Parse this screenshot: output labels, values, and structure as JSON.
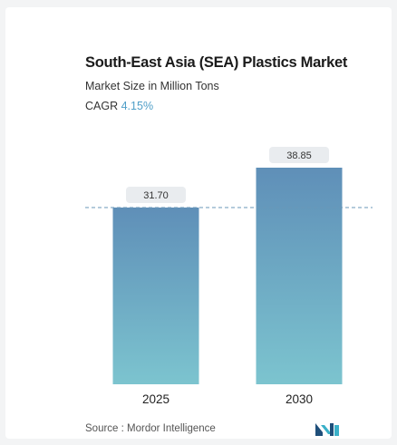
{
  "header": {
    "title": "South-East Asia (SEA) Plastics Market",
    "subtitle": "Market Size in Million Tons",
    "cagr_label": "CAGR",
    "cagr_value": "4.15%"
  },
  "footer": {
    "source": "Source :  Mordor Intelligence",
    "logo_icon": "mordor-intelligence-logo-icon"
  },
  "colors": {
    "bar_top": "#5f8fb8",
    "bar_bottom": "#7cc4cf",
    "label_bg": "#e9ecef",
    "dashed_line": "#6a97b8",
    "cagr": "#4f9fc8",
    "logo_dark": "#1f4f7a",
    "logo_light": "#3ab0c8"
  },
  "chart_data": {
    "type": "bar",
    "title": "South-East Asia (SEA) Plastics Market",
    "subtitle": "Market Size in Million Tons",
    "categories": [
      "2025",
      "2030"
    ],
    "values": [
      31.7,
      38.85
    ],
    "value_labels": [
      "31.70",
      "38.85"
    ],
    "reference_line": 31.7,
    "reference_line_style": "dashed",
    "ylim": [
      0,
      38.85
    ],
    "grid": false,
    "axis_visible": false
  }
}
